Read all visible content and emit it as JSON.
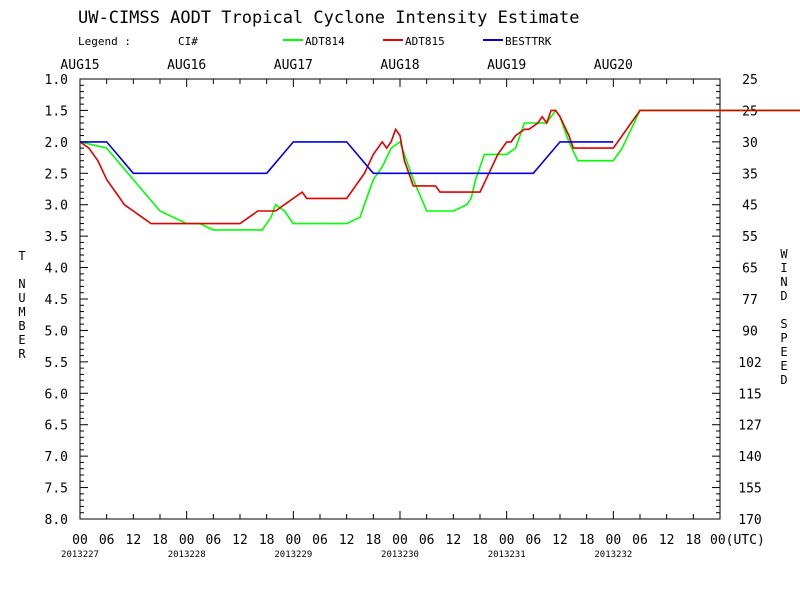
{
  "chart_data": {
    "type": "line",
    "title": "UW-CIMSS AODT Tropical Cyclone Intensity Estimate",
    "legend_label": "Legend :",
    "legend_ci": "CI#",
    "series": [
      {
        "name": "ADT814",
        "color": "#00ff00",
        "points": [
          [
            0,
            2.0
          ],
          [
            6,
            2.1
          ],
          [
            12,
            2.6
          ],
          [
            18,
            3.1
          ],
          [
            24,
            3.3
          ],
          [
            27,
            3.3
          ],
          [
            30,
            3.4
          ],
          [
            36,
            3.4
          ],
          [
            41,
            3.4
          ],
          [
            43,
            3.2
          ],
          [
            44,
            3.0
          ],
          [
            46,
            3.1
          ],
          [
            48,
            3.3
          ],
          [
            51,
            3.3
          ],
          [
            54,
            3.3
          ],
          [
            57,
            3.3
          ],
          [
            60,
            3.3
          ],
          [
            63,
            3.2
          ],
          [
            64,
            3.0
          ],
          [
            66,
            2.6
          ],
          [
            68,
            2.4
          ],
          [
            70,
            2.1
          ],
          [
            72,
            2.0
          ],
          [
            73,
            2.2
          ],
          [
            75,
            2.6
          ],
          [
            78,
            3.1
          ],
          [
            81,
            3.1
          ],
          [
            84,
            3.1
          ],
          [
            87,
            3.0
          ],
          [
            88,
            2.9
          ],
          [
            89,
            2.6
          ],
          [
            90,
            2.4
          ],
          [
            91,
            2.2
          ],
          [
            94,
            2.2
          ],
          [
            96,
            2.2
          ],
          [
            98,
            2.1
          ],
          [
            99,
            1.9
          ],
          [
            100,
            1.7
          ],
          [
            103,
            1.7
          ],
          [
            105,
            1.7
          ],
          [
            106,
            1.6
          ],
          [
            107,
            1.5
          ],
          [
            108,
            1.6
          ],
          [
            110,
            2.0
          ],
          [
            112,
            2.3
          ],
          [
            114,
            2.3
          ],
          [
            118,
            2.3
          ],
          [
            120,
            2.3
          ],
          [
            122,
            2.1
          ],
          [
            124,
            1.8
          ],
          [
            126,
            1.5
          ],
          [
            162,
            1.5
          ]
        ]
      },
      {
        "name": "ADT815",
        "color": "#e00000",
        "points": [
          [
            0,
            2.0
          ],
          [
            2,
            2.1
          ],
          [
            4,
            2.3
          ],
          [
            6,
            2.6
          ],
          [
            8,
            2.8
          ],
          [
            10,
            3.0
          ],
          [
            12,
            3.1
          ],
          [
            14,
            3.2
          ],
          [
            16,
            3.3
          ],
          [
            20,
            3.3
          ],
          [
            24,
            3.3
          ],
          [
            28,
            3.3
          ],
          [
            32,
            3.3
          ],
          [
            36,
            3.3
          ],
          [
            38,
            3.2
          ],
          [
            40,
            3.1
          ],
          [
            44,
            3.1
          ],
          [
            46,
            3.0
          ],
          [
            48,
            2.9
          ],
          [
            50,
            2.8
          ],
          [
            51,
            2.9
          ],
          [
            54,
            2.9
          ],
          [
            57,
            2.9
          ],
          [
            60,
            2.9
          ],
          [
            62,
            2.7
          ],
          [
            64,
            2.5
          ],
          [
            66,
            2.2
          ],
          [
            68,
            2.0
          ],
          [
            69,
            2.1
          ],
          [
            70,
            2.0
          ],
          [
            71,
            1.8
          ],
          [
            72,
            1.9
          ],
          [
            73,
            2.3
          ],
          [
            75,
            2.7
          ],
          [
            78,
            2.7
          ],
          [
            80,
            2.7
          ],
          [
            81,
            2.8
          ],
          [
            84,
            2.8
          ],
          [
            87,
            2.8
          ],
          [
            90,
            2.8
          ],
          [
            92,
            2.5
          ],
          [
            94,
            2.2
          ],
          [
            96,
            2.0
          ],
          [
            97,
            2.0
          ],
          [
            98,
            1.9
          ],
          [
            100,
            1.8
          ],
          [
            101,
            1.8
          ],
          [
            103,
            1.7
          ],
          [
            104,
            1.6
          ],
          [
            105,
            1.7
          ],
          [
            106,
            1.5
          ],
          [
            107,
            1.5
          ],
          [
            108,
            1.6
          ],
          [
            110,
            1.9
          ],
          [
            111,
            2.1
          ],
          [
            114,
            2.1
          ],
          [
            117,
            2.1
          ],
          [
            120,
            2.1
          ],
          [
            122,
            1.9
          ],
          [
            124,
            1.7
          ],
          [
            126,
            1.5
          ],
          [
            162,
            1.5
          ]
        ]
      },
      {
        "name": "BESTTRK",
        "color": "#0000e0",
        "points": [
          [
            0,
            2.0
          ],
          [
            6,
            2.0
          ],
          [
            12,
            2.5
          ],
          [
            18,
            2.5
          ],
          [
            24,
            2.5
          ],
          [
            30,
            2.5
          ],
          [
            36,
            2.5
          ],
          [
            42,
            2.5
          ],
          [
            48,
            2.0
          ],
          [
            54,
            2.0
          ],
          [
            60,
            2.0
          ],
          [
            66,
            2.5
          ],
          [
            72,
            2.5
          ],
          [
            78,
            2.5
          ],
          [
            84,
            2.5
          ],
          [
            90,
            2.5
          ],
          [
            96,
            2.5
          ],
          [
            102,
            2.5
          ],
          [
            108,
            2.0
          ],
          [
            114,
            2.0
          ],
          [
            120,
            2.0
          ]
        ]
      }
    ],
    "x_axis": {
      "range_hours": [
        0,
        144
      ],
      "top_labels": [
        "AUG15",
        "AUG16",
        "AUG17",
        "AUG18",
        "AUG19",
        "AUG20"
      ],
      "hour_labels": [
        "00",
        "06",
        "12",
        "18",
        "00",
        "06",
        "12",
        "18",
        "00",
        "06",
        "12",
        "18",
        "00",
        "06",
        "12",
        "18",
        "00",
        "06",
        "12",
        "18",
        "00",
        "06",
        "12",
        "18",
        "00(UTC)"
      ],
      "date_labels": [
        "2013227",
        "2013228",
        "2013229",
        "2013230",
        "2013231",
        "2013232"
      ]
    },
    "y_axis": {
      "range": [
        1.0,
        8.0
      ],
      "inverted": true,
      "tick_labels": [
        "1.0",
        "1.5",
        "2.0",
        "2.5",
        "3.0",
        "3.5",
        "4.0",
        "4.5",
        "5.0",
        "5.5",
        "6.0",
        "6.5",
        "7.0",
        "7.5",
        "8.0"
      ],
      "left_label": "T NUMBER",
      "right_label": "WIND SPEED",
      "right_tick_labels": [
        "25",
        "25",
        "30",
        "35",
        "45",
        "55",
        "65",
        "77",
        "90",
        "102",
        "115",
        "127",
        "140",
        "155",
        "170"
      ]
    },
    "grid": false
  }
}
